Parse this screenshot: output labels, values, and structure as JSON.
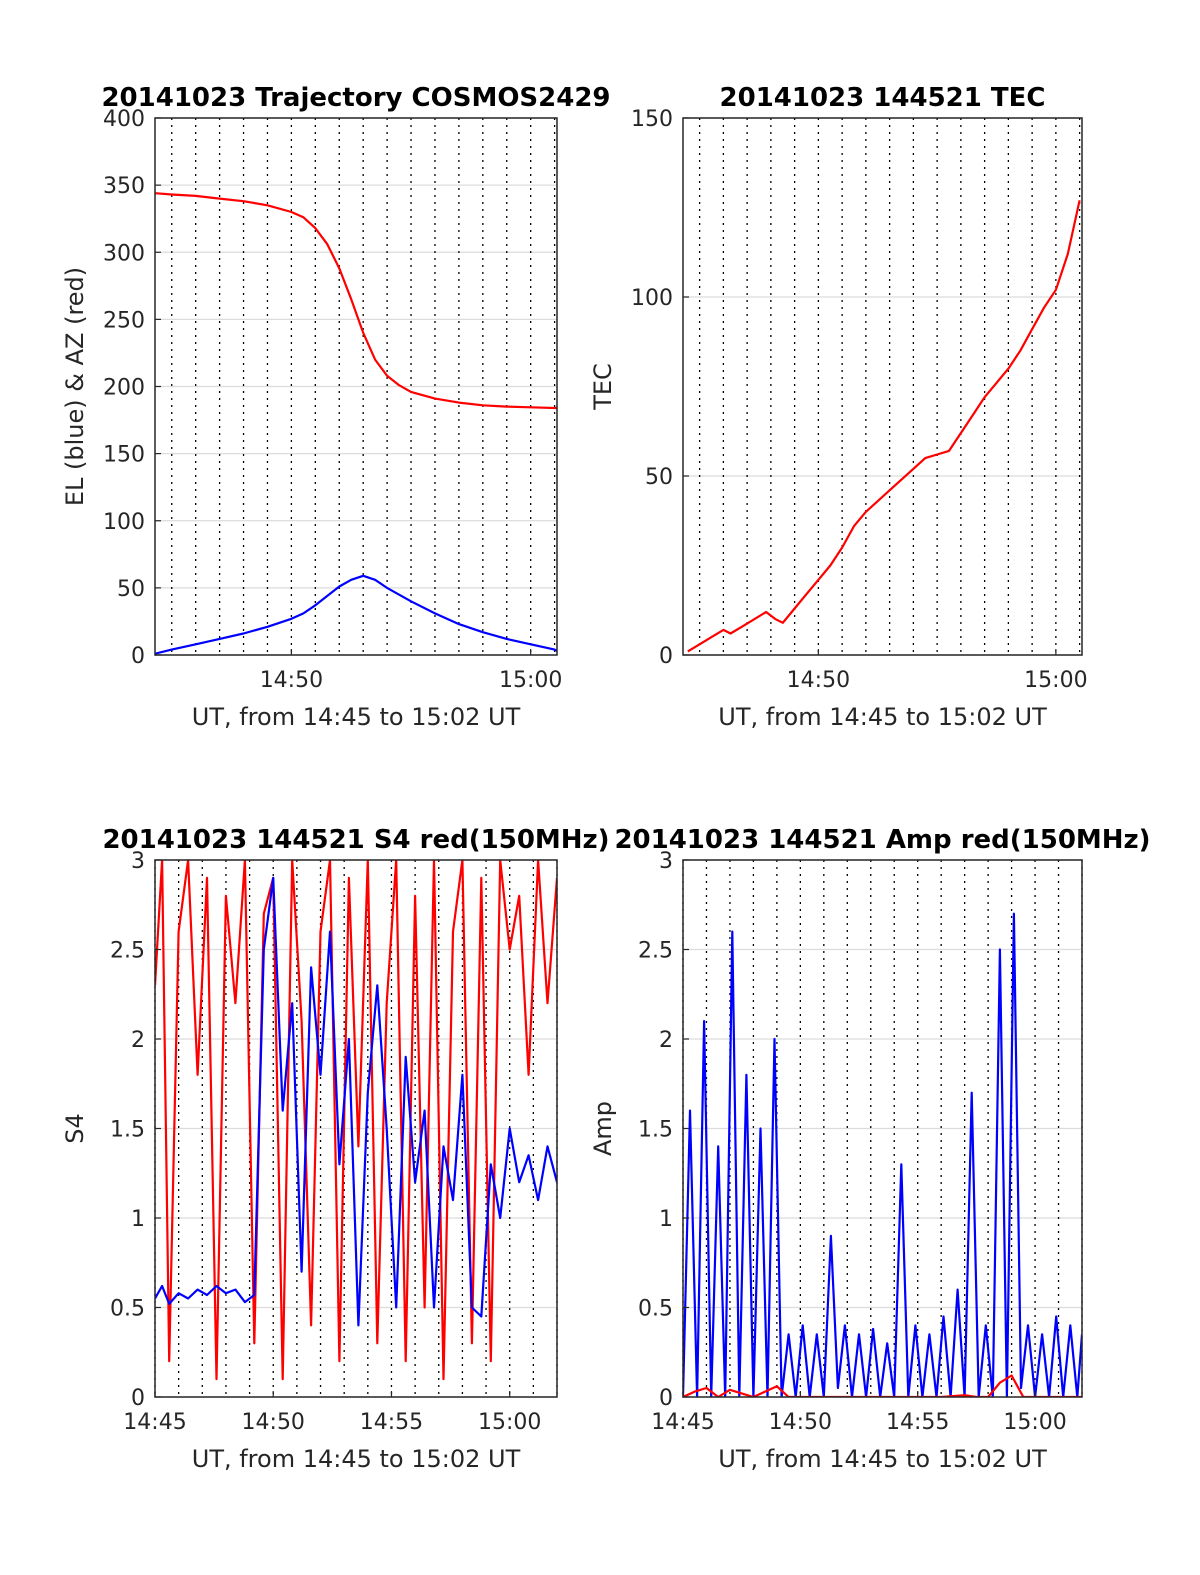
{
  "chart_data": [
    {
      "type": "line",
      "title": "20141023 Trajectory COSMOS2429",
      "xlabel": "UT, from 14:45 to 15:02 UT",
      "ylabel": "EL (blue) & AZ (red)",
      "xlim": [
        14.3,
        31.1
      ],
      "ylim": [
        0,
        400
      ],
      "x_ticks": [
        {
          "v": 20,
          "label": "14:50"
        },
        {
          "v": 30,
          "label": "15:00"
        }
      ],
      "y_ticks": [
        0,
        50,
        100,
        150,
        200,
        250,
        300,
        350,
        400
      ],
      "grid": "horizontal solid, vertical dotted every minute",
      "series": [
        {
          "color": "#ff0000",
          "x": [
            14.3,
            15,
            16,
            17,
            18,
            19,
            20,
            20.5,
            21,
            21.5,
            22,
            22.5,
            23,
            23.5,
            24,
            24.5,
            25,
            26,
            27,
            28,
            29,
            30,
            31,
            31.1
          ],
          "y": [
            344,
            343,
            342,
            340,
            338,
            335,
            330,
            326,
            318,
            306,
            288,
            265,
            240,
            220,
            208,
            201,
            196,
            191,
            188,
            186,
            185,
            184.5,
            184,
            184
          ]
        },
        {
          "color": "#0000ff",
          "x": [
            14.3,
            15,
            16,
            17,
            18,
            19,
            20,
            20.5,
            21,
            21.5,
            22,
            22.5,
            23,
            23.5,
            24,
            25,
            26,
            27,
            28,
            29,
            30,
            31,
            31.1
          ],
          "y": [
            1,
            4,
            8,
            12,
            16,
            21,
            27,
            31,
            37,
            44,
            51,
            56,
            59,
            56,
            50,
            40,
            31,
            23,
            17,
            12,
            8,
            4,
            3
          ]
        }
      ]
    },
    {
      "type": "line",
      "title": "20141023 144521 TEC",
      "xlabel": "UT, from 14:45 to 15:02 UT",
      "ylabel": "TEC",
      "xlim": [
        14.3,
        31.1
      ],
      "ylim": [
        0,
        150
      ],
      "x_ticks": [
        {
          "v": 20,
          "label": "14:50"
        },
        {
          "v": 30,
          "label": "15:00"
        }
      ],
      "y_ticks": [
        0,
        50,
        100,
        150
      ],
      "grid": "horizontal solid, vertical dotted every minute",
      "series": [
        {
          "color": "#ff0000",
          "x": [
            14.5,
            15.0,
            15.5,
            16.0,
            16.3,
            16.8,
            17.3,
            17.8,
            18.2,
            18.5,
            19.0,
            19.5,
            20.0,
            20.5,
            21.0,
            21.5,
            22.0,
            22.5,
            23.0,
            23.5,
            24.0,
            24.5,
            25.0,
            25.5,
            26.0,
            26.5,
            27.0,
            27.5,
            28.0,
            28.5,
            29.0,
            29.5,
            30.0,
            30.5,
            31.0
          ],
          "y": [
            1,
            3,
            5,
            7,
            6,
            8,
            10,
            12,
            10,
            9,
            13,
            17,
            21,
            25,
            30,
            36,
            40,
            43,
            46,
            49,
            52,
            55,
            56,
            57,
            62,
            67,
            72,
            76,
            80,
            85,
            91,
            97,
            102,
            112,
            127
          ]
        }
      ]
    },
    {
      "type": "line",
      "title": "20141023 144521 S4 red(150MHz)",
      "xlabel": "UT, from 14:45 to 15:02 UT",
      "ylabel": "S4",
      "xlim": [
        15,
        32
      ],
      "ylim": [
        0,
        3
      ],
      "x_ticks": [
        {
          "v": 15,
          "label": "14:45"
        },
        {
          "v": 20,
          "label": "14:50"
        },
        {
          "v": 25,
          "label": "14:55"
        },
        {
          "v": 30,
          "label": "15:00"
        }
      ],
      "y_ticks": [
        0,
        0.5,
        1,
        1.5,
        2,
        2.5,
        3
      ],
      "grid": "horizontal solid, vertical dotted every minute",
      "series": [
        {
          "color": "#ff0000",
          "x": [
            15.0,
            15.3,
            15.6,
            16.0,
            16.4,
            16.8,
            17.2,
            17.6,
            18.0,
            18.4,
            18.8,
            19.2,
            19.6,
            20.0,
            20.4,
            20.8,
            21.2,
            21.6,
            22.0,
            22.4,
            22.8,
            23.2,
            23.6,
            24.0,
            24.4,
            24.8,
            25.2,
            25.6,
            26.0,
            26.4,
            26.8,
            27.2,
            27.6,
            28.0,
            28.4,
            28.8,
            29.2,
            29.6,
            30.0,
            30.4,
            30.8,
            31.2,
            31.6,
            32.0
          ],
          "y": [
            2.3,
            3.0,
            0.2,
            2.6,
            3.0,
            1.8,
            2.9,
            0.1,
            2.8,
            2.2,
            3.0,
            0.3,
            2.7,
            2.9,
            0.1,
            3.0,
            2.1,
            0.4,
            2.6,
            3.0,
            0.2,
            2.9,
            1.4,
            3.0,
            0.3,
            2.2,
            3.0,
            0.2,
            2.8,
            0.5,
            3.0,
            0.1,
            2.6,
            3.0,
            0.3,
            2.9,
            0.2,
            3.0,
            2.5,
            2.8,
            1.8,
            3.0,
            2.2,
            2.9
          ]
        },
        {
          "color": "#0000ff",
          "x": [
            15.0,
            15.3,
            15.6,
            16.0,
            16.4,
            16.8,
            17.2,
            17.6,
            18.0,
            18.4,
            18.8,
            19.2,
            19.6,
            20.0,
            20.4,
            20.8,
            21.2,
            21.6,
            22.0,
            22.4,
            22.8,
            23.2,
            23.6,
            24.0,
            24.4,
            24.8,
            25.2,
            25.6,
            26.0,
            26.4,
            26.8,
            27.2,
            27.6,
            28.0,
            28.4,
            28.8,
            29.2,
            29.6,
            30.0,
            30.4,
            30.8,
            31.2,
            31.6,
            32.0
          ],
          "y": [
            0.55,
            0.62,
            0.52,
            0.58,
            0.55,
            0.6,
            0.57,
            0.62,
            0.58,
            0.6,
            0.53,
            0.57,
            2.5,
            2.9,
            1.6,
            2.2,
            0.7,
            2.4,
            1.8,
            2.6,
            1.3,
            2.0,
            0.4,
            1.7,
            2.3,
            1.5,
            0.5,
            1.9,
            1.2,
            1.6,
            0.5,
            1.4,
            1.1,
            1.8,
            0.5,
            0.45,
            1.3,
            1.0,
            1.5,
            1.2,
            1.35,
            1.1,
            1.4,
            1.2
          ]
        }
      ]
    },
    {
      "type": "line",
      "title": "20141023 144521 Amp red(150MHz)",
      "xlabel": "UT, from 14:45 to 15:02 UT",
      "ylabel": "Amp",
      "xlim": [
        15,
        32
      ],
      "ylim": [
        0,
        3
      ],
      "x_ticks": [
        {
          "v": 15,
          "label": "14:45"
        },
        {
          "v": 20,
          "label": "14:50"
        },
        {
          "v": 25,
          "label": "14:55"
        },
        {
          "v": 30,
          "label": "15:00"
        }
      ],
      "y_ticks": [
        0,
        0.5,
        1,
        1.5,
        2,
        2.5,
        3
      ],
      "grid": "horizontal solid, vertical dotted every minute",
      "series": [
        {
          "color": "#0000ff",
          "x": [
            15.0,
            15.3,
            15.6,
            15.9,
            16.2,
            16.5,
            16.8,
            17.1,
            17.4,
            17.7,
            18.0,
            18.3,
            18.6,
            18.9,
            19.2,
            19.5,
            19.8,
            20.1,
            20.4,
            20.7,
            21.0,
            21.3,
            21.6,
            21.9,
            22.2,
            22.5,
            22.8,
            23.1,
            23.4,
            23.7,
            24.0,
            24.3,
            24.6,
            24.9,
            25.2,
            25.5,
            25.8,
            26.1,
            26.4,
            26.7,
            27.0,
            27.3,
            27.6,
            27.9,
            28.2,
            28.5,
            28.8,
            29.1,
            29.4,
            29.7,
            30.0,
            30.3,
            30.6,
            30.9,
            31.2,
            31.5,
            31.8,
            32.0
          ],
          "y": [
            0.0,
            1.6,
            0.0,
            2.1,
            0.0,
            1.4,
            0.0,
            2.6,
            0.0,
            1.8,
            0.0,
            1.5,
            0.0,
            2.0,
            0.0,
            0.35,
            0.0,
            0.4,
            0.0,
            0.35,
            0.0,
            0.9,
            0.05,
            0.4,
            0.0,
            0.35,
            0.0,
            0.38,
            0.0,
            0.3,
            0.0,
            1.3,
            0.0,
            0.4,
            0.0,
            0.35,
            0.0,
            0.45,
            0.0,
            0.6,
            0.0,
            1.7,
            0.0,
            0.4,
            0.0,
            2.5,
            0.0,
            2.7,
            0.05,
            0.4,
            0.0,
            0.35,
            0.0,
            0.45,
            0.0,
            0.4,
            0.0,
            0.35
          ]
        },
        {
          "color": "#ff0000",
          "x": [
            15.0,
            15.5,
            16.0,
            16.5,
            17.0,
            17.5,
            18.0,
            18.5,
            19.0,
            19.5,
            20.0,
            22.0,
            24.0,
            26.0,
            27.0,
            27.5,
            28.0,
            28.5,
            29.0,
            29.5,
            30.0,
            32.0
          ],
          "y": [
            0.0,
            0.03,
            0.05,
            0.0,
            0.04,
            0.02,
            0.0,
            0.03,
            0.06,
            0.0,
            0.0,
            0.0,
            0.0,
            0.0,
            0.01,
            0.0,
            0.0,
            0.08,
            0.12,
            0.0,
            0.0,
            0.0
          ]
        }
      ]
    }
  ]
}
